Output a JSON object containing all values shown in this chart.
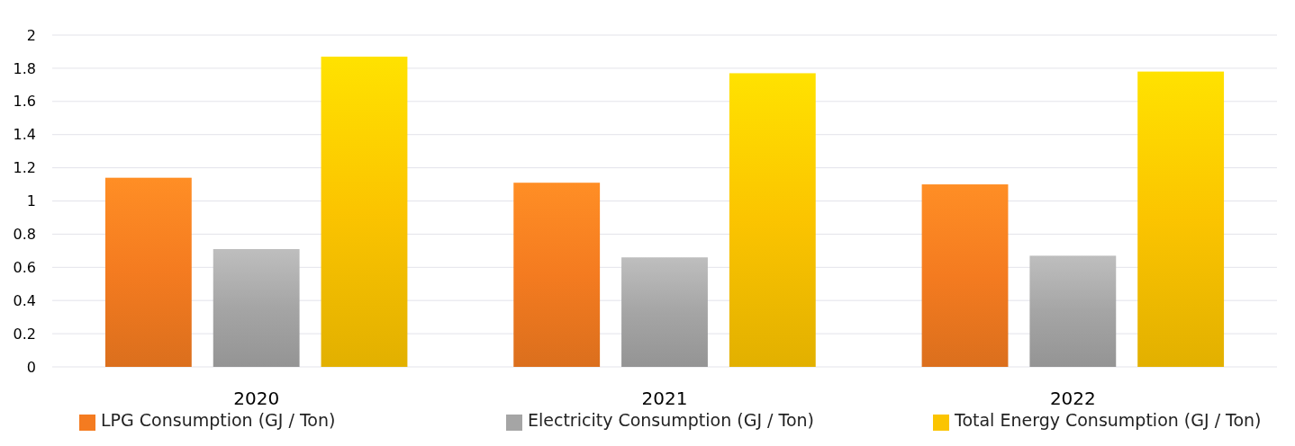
{
  "chart_data": {
    "type": "bar",
    "categories": [
      "2020",
      "2021",
      "2022"
    ],
    "series": [
      {
        "name": "LPG Consumption (GJ / Ton)",
        "color": "#f47b20",
        "values": [
          1.14,
          1.11,
          1.1
        ]
      },
      {
        "name": "Electricity Consumption (GJ / Ton)",
        "color": "#a5a5a5",
        "values": [
          0.71,
          0.66,
          0.67
        ]
      },
      {
        "name": "Total Energy Consumption (GJ / Ton)",
        "color": "#fbc400",
        "values": [
          1.87,
          1.77,
          1.78
        ]
      }
    ],
    "ylim": [
      0,
      2
    ],
    "yticks": [
      0,
      {
        "value": 0.2,
        "label": "0.2"
      },
      {
        "value": 0.4,
        "label": "0.4"
      },
      {
        "value": 0.6,
        "label": "0.6"
      },
      {
        "value": 0.8,
        "label": "0.8"
      },
      1,
      {
        "value": 1.2,
        "label": "1.2"
      },
      {
        "value": 1.4,
        "label": "1.4"
      },
      {
        "value": 1.6,
        "label": "1.6"
      },
      {
        "value": 1.8,
        "label": "1.8"
      },
      2
    ],
    "grid": "y",
    "legend": "bottom"
  }
}
